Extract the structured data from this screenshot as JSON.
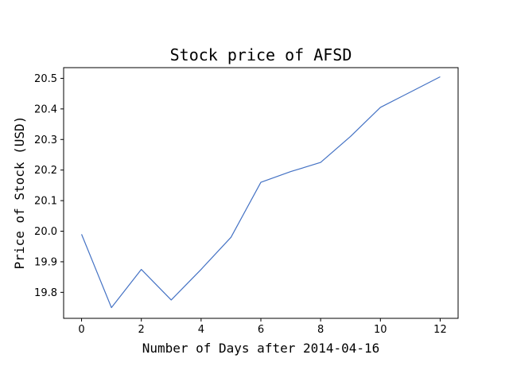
{
  "chart_data": {
    "type": "line",
    "title": "Stock price of AFSD",
    "xlabel": "Number of Days after 2014-04-16",
    "ylabel": "Price of Stock (USD)",
    "xlim": [
      -0.6,
      12.6
    ],
    "ylim": [
      19.715,
      20.535
    ],
    "x_ticks": [
      0,
      2,
      4,
      6,
      8,
      10,
      12
    ],
    "y_ticks": [
      19.8,
      19.9,
      20.0,
      20.1,
      20.2,
      20.3,
      20.4,
      20.5
    ],
    "series": [
      {
        "name": "AFSD",
        "color": "#4472c4",
        "x": [
          0,
          1,
          2,
          3,
          4,
          5,
          6,
          7,
          8,
          9,
          10,
          11,
          12
        ],
        "values": [
          19.99,
          19.75,
          19.875,
          19.775,
          19.875,
          19.98,
          20.16,
          20.195,
          20.225,
          20.31,
          20.405,
          20.455,
          20.505
        ]
      }
    ],
    "grid": false,
    "legend": "none"
  }
}
